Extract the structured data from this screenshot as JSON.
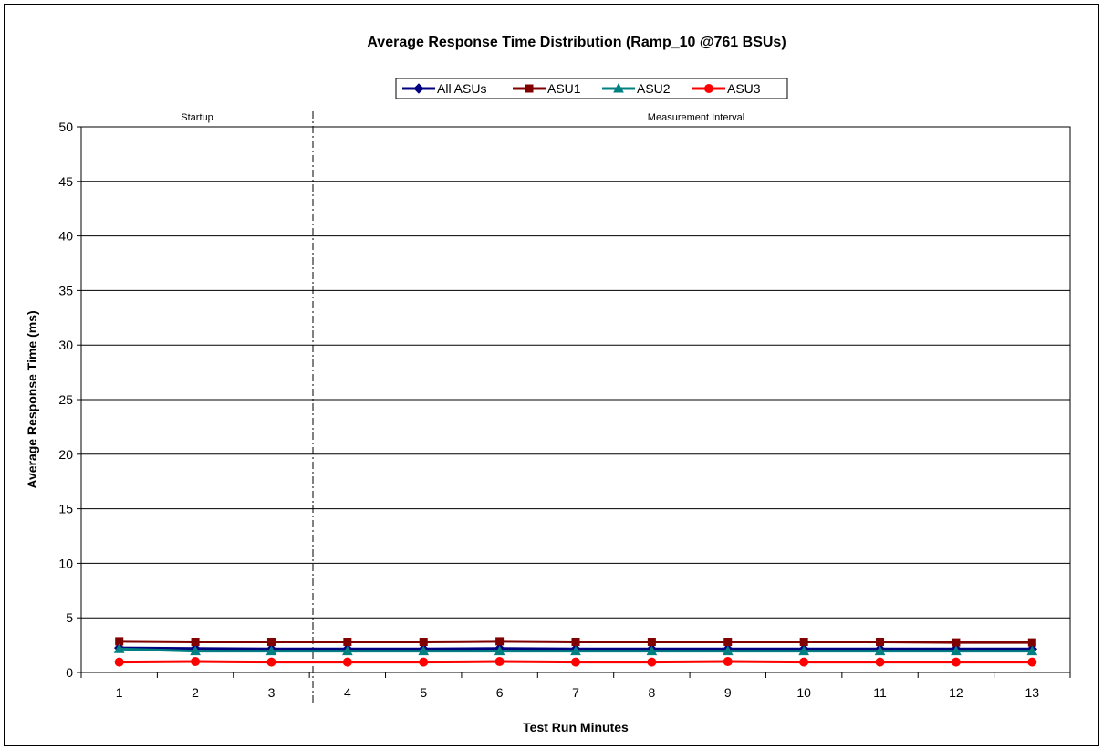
{
  "chart_data": {
    "type": "line",
    "title": "Average Response Time Distribution (Ramp_10 @761 BSUs)",
    "xlabel": "Test Run Minutes",
    "ylabel": "Average Response Time (ms)",
    "categories": [
      "1",
      "2",
      "3",
      "4",
      "5",
      "6",
      "7",
      "8",
      "9",
      "10",
      "11",
      "12",
      "13"
    ],
    "ylim": [
      0,
      50
    ],
    "yticks": [
      "0",
      "5",
      "10",
      "15",
      "20",
      "25",
      "30",
      "35",
      "40",
      "45",
      "50"
    ],
    "grid": "horizontal",
    "legend_position": "top",
    "regions": [
      {
        "label": "Startup"
      },
      {
        "label": "Measurement Interval"
      }
    ],
    "series": [
      {
        "name": "All ASUs",
        "color": "#000080",
        "marker": "diamond",
        "values": [
          2.25,
          2.2,
          2.15,
          2.15,
          2.15,
          2.2,
          2.15,
          2.15,
          2.15,
          2.15,
          2.15,
          2.15,
          2.15
        ]
      },
      {
        "name": "ASU1",
        "color": "#800000",
        "marker": "square",
        "values": [
          2.85,
          2.8,
          2.8,
          2.8,
          2.8,
          2.85,
          2.8,
          2.8,
          2.8,
          2.8,
          2.8,
          2.75,
          2.75
        ]
      },
      {
        "name": "ASU2",
        "color": "#008080",
        "marker": "triangle",
        "values": [
          2.15,
          1.95,
          1.95,
          1.95,
          1.95,
          1.95,
          1.95,
          1.95,
          1.95,
          1.95,
          1.95,
          1.95,
          1.95
        ]
      },
      {
        "name": "ASU3",
        "color": "#FF0000",
        "marker": "circle",
        "values": [
          0.95,
          1.0,
          0.95,
          0.95,
          0.95,
          1.0,
          0.95,
          0.95,
          1.0,
          0.95,
          0.95,
          0.95,
          0.95
        ]
      }
    ]
  }
}
